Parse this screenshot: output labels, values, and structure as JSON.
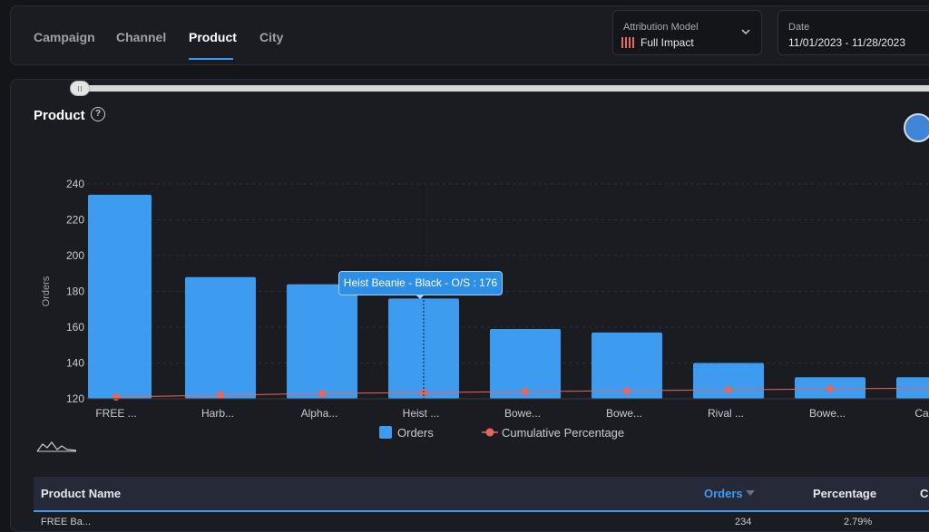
{
  "tabs": [
    {
      "label": "Campaign",
      "active": false
    },
    {
      "label": "Channel",
      "active": false
    },
    {
      "label": "Product",
      "active": true
    },
    {
      "label": "City",
      "active": false
    }
  ],
  "attribution": {
    "label": "Attribution Model",
    "value": "Full Impact"
  },
  "date": {
    "label": "Date",
    "value": "11/01/2023 - 11/28/2023"
  },
  "panel": {
    "title": "Product",
    "help_icon": "?"
  },
  "tooltip": "Heist Beanie - Black - O/S : 176",
  "legend": {
    "bars": "Orders",
    "line": "Cumulative Percentage"
  },
  "table": {
    "headers": [
      "Product Name",
      "Orders",
      "Percentage",
      "C"
    ],
    "sorted_column": "Orders",
    "first_row": {
      "name": "FREE Ba...",
      "orders": "234",
      "percentage": "2.79%"
    }
  },
  "colors": {
    "accent": "#3d9bf0",
    "line": "#e8665a",
    "background": "#141519"
  },
  "chart_data": {
    "type": "bar",
    "categories": [
      "FREE ...",
      "Harb...",
      "Alpha...",
      "Heist ...",
      "Bowe...",
      "Bowe...",
      "Rival ...",
      "Bowe...",
      "Cas..."
    ],
    "series": [
      {
        "name": "Orders",
        "type": "bar",
        "values": [
          234,
          188,
          184,
          176,
          159,
          157,
          140,
          132,
          132
        ]
      },
      {
        "name": "Cumulative Percentage",
        "type": "line",
        "values": [
          121,
          122,
          123,
          123.5,
          124,
          124.5,
          125,
          125.5,
          126
        ]
      }
    ],
    "ylabel": "Orders",
    "ylim": [
      120,
      240
    ],
    "yticks": [
      120,
      140,
      160,
      180,
      200,
      220,
      240
    ],
    "highlighted_index": 3,
    "grid": true,
    "legend_position": "bottom"
  }
}
